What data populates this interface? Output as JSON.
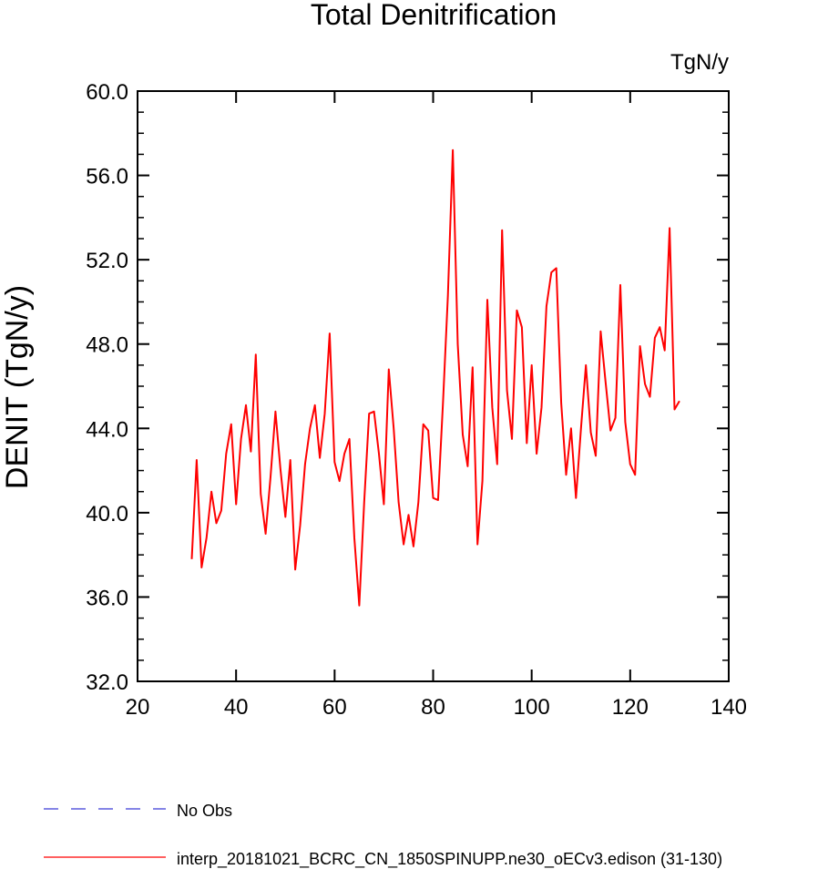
{
  "chart_data": {
    "type": "line",
    "title": "Total Denitrification",
    "units_label": "TgN/y",
    "ylabel": "DENIT  (TgN/y)",
    "xlabel": "",
    "xlim": [
      20,
      140
    ],
    "ylim": [
      32,
      60
    ],
    "x_ticks": [
      20,
      40,
      60,
      80,
      100,
      120,
      140
    ],
    "y_ticks": [
      "32.0",
      "36.0",
      "40.0",
      "44.0",
      "48.0",
      "52.0",
      "56.0",
      "60.0"
    ],
    "grid": false,
    "legend_position": "bottom",
    "series": [
      {
        "name": "interp_20181021_BCRC_CN_1850SPINUPP.ne30_oECv3.edison (31-130)",
        "color": "#ff0000",
        "x": [
          31,
          32,
          33,
          34,
          35,
          36,
          37,
          38,
          39,
          40,
          41,
          42,
          43,
          44,
          45,
          46,
          47,
          48,
          49,
          50,
          51,
          52,
          53,
          54,
          55,
          56,
          57,
          58,
          59,
          60,
          61,
          62,
          63,
          64,
          65,
          66,
          67,
          68,
          69,
          70,
          71,
          72,
          73,
          74,
          75,
          76,
          77,
          78,
          79,
          80,
          81,
          82,
          83,
          84,
          85,
          86,
          87,
          88,
          89,
          90,
          91,
          92,
          93,
          94,
          95,
          96,
          97,
          98,
          99,
          100,
          101,
          102,
          103,
          104,
          105,
          106,
          107,
          108,
          109,
          110,
          111,
          112,
          113,
          114,
          115,
          116,
          117,
          118,
          119,
          120,
          121,
          122,
          123,
          124,
          125,
          126,
          127,
          128,
          129,
          130
        ],
        "values": [
          37.8,
          42.5,
          37.4,
          38.8,
          41.0,
          39.5,
          40.1,
          42.8,
          44.2,
          40.4,
          43.5,
          45.1,
          42.9,
          47.5,
          40.9,
          39.0,
          41.7,
          44.8,
          42.1,
          39.8,
          42.5,
          37.3,
          39.4,
          42.3,
          44.0,
          45.1,
          42.6,
          44.7,
          48.5,
          42.4,
          41.5,
          42.8,
          43.5,
          38.8,
          35.6,
          40.5,
          44.7,
          44.8,
          42.8,
          40.4,
          46.8,
          44.0,
          40.5,
          38.5,
          39.9,
          38.4,
          40.5,
          44.2,
          43.9,
          40.7,
          40.6,
          45.2,
          50.3,
          57.2,
          48.0,
          43.7,
          42.2,
          46.9,
          38.5,
          41.5,
          50.1,
          45.0,
          42.3,
          53.4,
          45.8,
          43.5,
          49.6,
          48.8,
          43.3,
          47.0,
          42.8,
          45.0,
          49.8,
          51.4,
          51.6,
          45.2,
          41.8,
          44.0,
          40.7,
          44.0,
          47.0,
          43.8,
          42.7,
          48.6,
          46.2,
          43.9,
          44.5,
          50.8,
          44.3,
          42.3,
          41.8,
          47.9,
          46.1,
          45.5,
          48.3,
          48.8,
          47.7,
          53.5,
          44.9,
          45.3
        ]
      },
      {
        "name": "No Obs",
        "color": "#3a3ad8",
        "x": [],
        "values": []
      }
    ]
  }
}
